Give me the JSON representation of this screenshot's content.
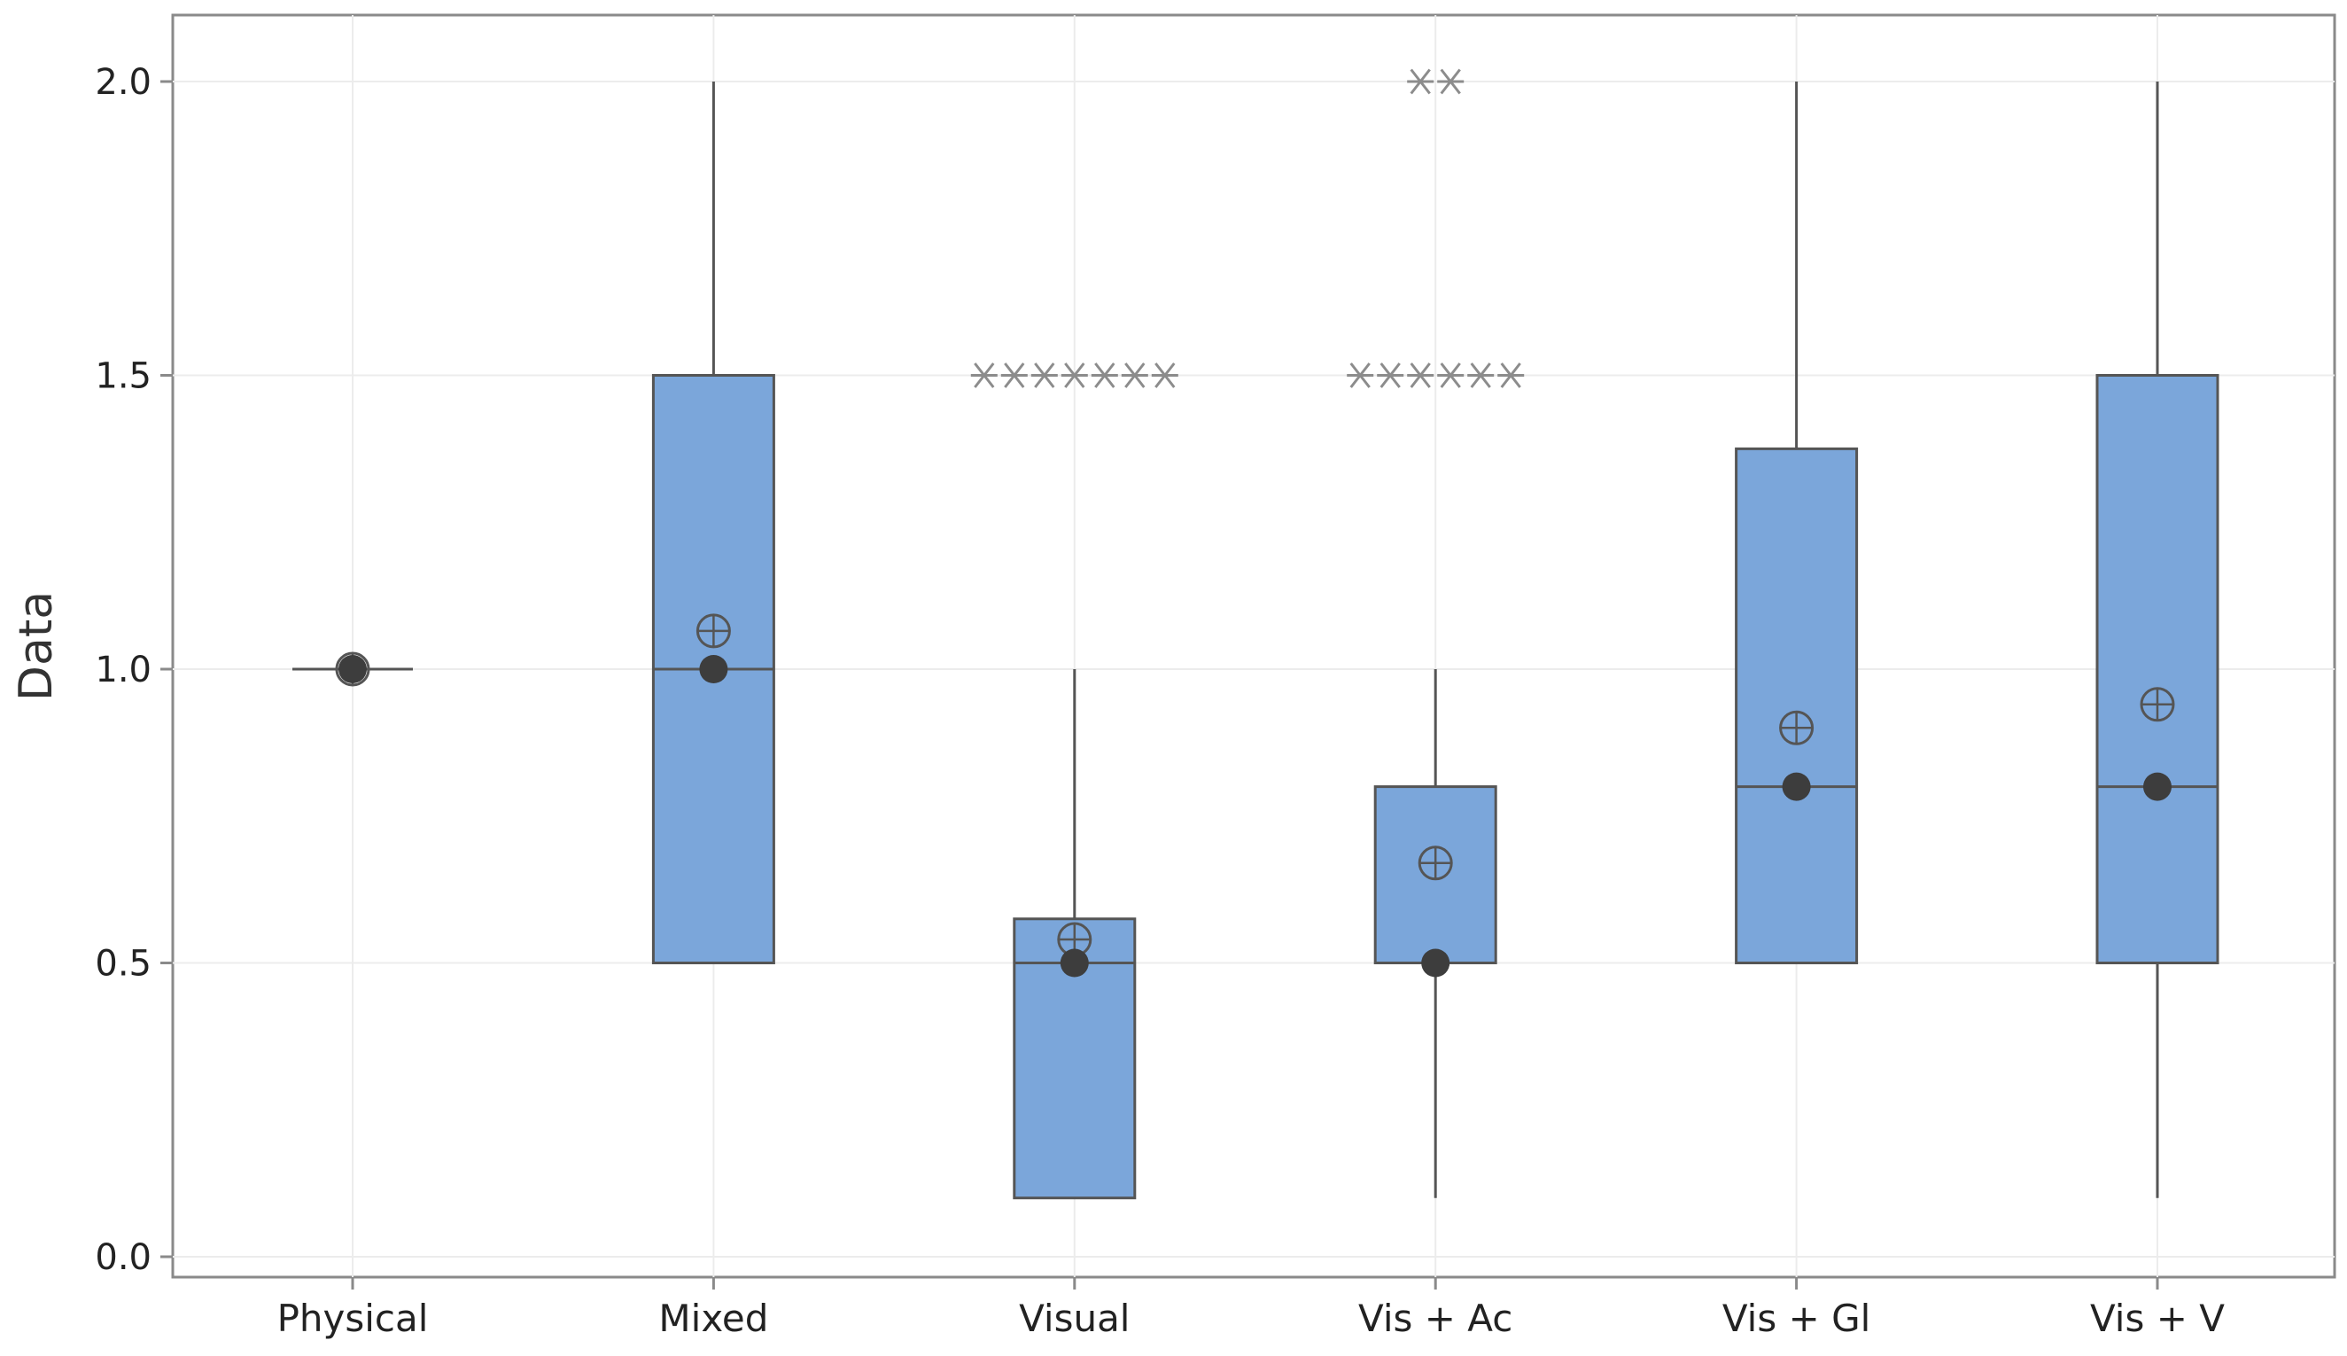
{
  "chart_data": {
    "type": "boxplot",
    "title": "",
    "xlabel": "",
    "ylabel": "Data",
    "ylim": [
      -0.04,
      2.12
    ],
    "yticks": [
      0.0,
      0.5,
      1.0,
      1.5,
      2.0
    ],
    "ytick_labels": [
      "0.0",
      "0.5",
      "1.0",
      "1.5",
      "2.0"
    ],
    "grid": true,
    "box_color": "#7BA6DA",
    "line_color": "#555555",
    "outlier_color": "#8C8C8C",
    "categories": [
      "Physical",
      "Mixed",
      "Visual",
      "Vis + Ac",
      "Vis + Gl",
      "Vis + V"
    ],
    "boxes": [
      {
        "name": "Physical",
        "whisker_low": 1.0,
        "q1": 1.0,
        "median": 1.0,
        "q3": 1.0,
        "whisker_high": 1.0,
        "mean": 1.0,
        "outliers": []
      },
      {
        "name": "Mixed",
        "whisker_low": 0.5,
        "q1": 0.5,
        "median": 1.0,
        "q3": 1.5,
        "whisker_high": 2.0,
        "mean": 1.065,
        "outliers": []
      },
      {
        "name": "Visual",
        "whisker_low": 0.1,
        "q1": 0.1,
        "median": 0.5,
        "q3": 0.575,
        "whisker_high": 1.0,
        "mean": 0.54,
        "outliers": [
          1.5,
          1.5,
          1.5,
          1.5,
          1.5,
          1.5,
          1.5
        ]
      },
      {
        "name": "Vis + Ac",
        "whisker_low": 0.1,
        "q1": 0.5,
        "median": 0.5,
        "q3": 0.8,
        "whisker_high": 1.0,
        "mean": 0.67,
        "outliers": [
          1.5,
          1.5,
          1.5,
          1.5,
          1.5,
          1.5,
          2.0,
          2.0
        ]
      },
      {
        "name": "Vis + Gl",
        "whisker_low": 0.5,
        "q1": 0.5,
        "median": 0.8,
        "q3": 1.375,
        "whisker_high": 2.0,
        "mean": 0.9,
        "outliers": []
      },
      {
        "name": "Vis + V",
        "whisker_low": 0.1,
        "q1": 0.5,
        "median": 0.8,
        "q3": 1.5,
        "whisker_high": 2.0,
        "mean": 0.94,
        "outliers": []
      }
    ]
  }
}
